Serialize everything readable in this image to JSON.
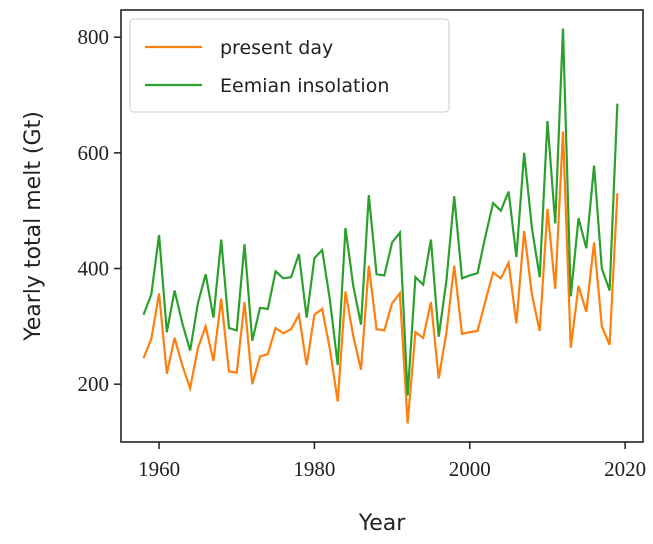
{
  "chart_data": {
    "type": "line",
    "xlabel": "Year",
    "ylabel": "Yearly total melt (Gt)",
    "x": [
      1958,
      1959,
      1960,
      1961,
      1962,
      1963,
      1964,
      1965,
      1966,
      1967,
      1968,
      1969,
      1970,
      1971,
      1972,
      1973,
      1974,
      1975,
      1976,
      1977,
      1978,
      1979,
      1980,
      1981,
      1982,
      1983,
      1984,
      1985,
      1986,
      1987,
      1988,
      1989,
      1990,
      1991,
      1992,
      1993,
      1994,
      1995,
      1996,
      1997,
      1998,
      1999,
      2000,
      2001,
      2002,
      2003,
      2004,
      2005,
      2006,
      2007,
      2008,
      2009,
      2010,
      2011,
      2012,
      2013,
      2014,
      2015,
      2016,
      2017,
      2018,
      2019
    ],
    "series": [
      {
        "name": "present day",
        "color": "#ff7f0e",
        "values": [
          245,
          278,
          357,
          218,
          280,
          232,
          193,
          262,
          300,
          240,
          348,
          222,
          220,
          342,
          200,
          248,
          252,
          297,
          288,
          295,
          320,
          233,
          320,
          330,
          260,
          170,
          360,
          283,
          225,
          405,
          295,
          293,
          340,
          357,
          132,
          290,
          280,
          342,
          210,
          290,
          405,
          287,
          290,
          292,
          343,
          393,
          383,
          410,
          305,
          465,
          355,
          292,
          503,
          365,
          637,
          263,
          370,
          325,
          445,
          300,
          268,
          530
        ]
      },
      {
        "name": "Eemian insolation",
        "color": "#2ca02c",
        "values": [
          320,
          355,
          458,
          290,
          362,
          305,
          258,
          340,
          390,
          315,
          450,
          297,
          293,
          442,
          275,
          332,
          330,
          395,
          383,
          385,
          425,
          315,
          418,
          432,
          345,
          233,
          470,
          370,
          303,
          527,
          390,
          388,
          445,
          462,
          180,
          385,
          372,
          450,
          282,
          380,
          525,
          383,
          388,
          392,
          455,
          513,
          500,
          533,
          420,
          600,
          470,
          385,
          655,
          478,
          815,
          352,
          487,
          435,
          578,
          400,
          362,
          685
        ]
      }
    ],
    "xlim": [
      1955.1,
      2022.3
    ],
    "xticks": [
      1960,
      1980,
      2000,
      2020
    ],
    "ylim": [
      100,
      847
    ],
    "yticks": [
      200,
      400,
      600,
      800
    ],
    "legend": "upper left"
  }
}
